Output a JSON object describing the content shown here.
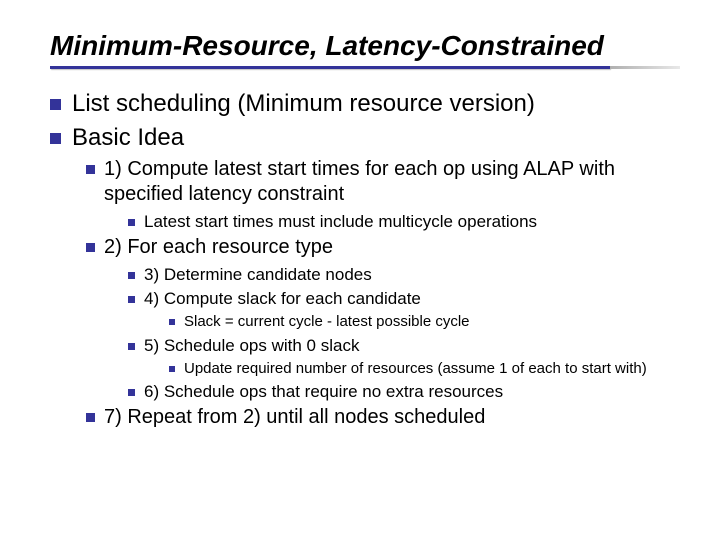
{
  "title": "Minimum-Resource, Latency-Constrained",
  "colors": {
    "bullet": "#333399",
    "underline": "#333399",
    "text": "#000000",
    "light_text": "#555555",
    "background": "#ffffff"
  },
  "fonts": {
    "family": "Arial",
    "title_size_pt": 28,
    "title_weight": "bold",
    "title_style": "italic",
    "lvl1_size_pt": 24,
    "lvl2_size_pt": 20,
    "lvl3_size_pt": 17,
    "lvl4_size_pt": 15
  },
  "bullets": {
    "lvl1": [
      "List scheduling (Minimum resource version)",
      "Basic Idea"
    ],
    "lvl2_a": "1) Compute latest start times for each op using ALAP with specified latency constraint",
    "lvl3_a": "Latest start times must include multicycle operations",
    "lvl2_b": "2) For each resource type",
    "lvl3_b1": "3) Determine candidate nodes",
    "lvl3_b2": "4) Compute slack for each candidate",
    "lvl4_b2a": "Slack = current cycle - latest possible cycle",
    "lvl3_b3": "5) Schedule ops with 0 slack",
    "lvl4_b3a": "Update required number of resources (assume 1 of each to start with)",
    "lvl3_b4": "6) Schedule ops that require no extra resources",
    "lvl2_c": "7) Repeat from 2) until all nodes scheduled"
  }
}
